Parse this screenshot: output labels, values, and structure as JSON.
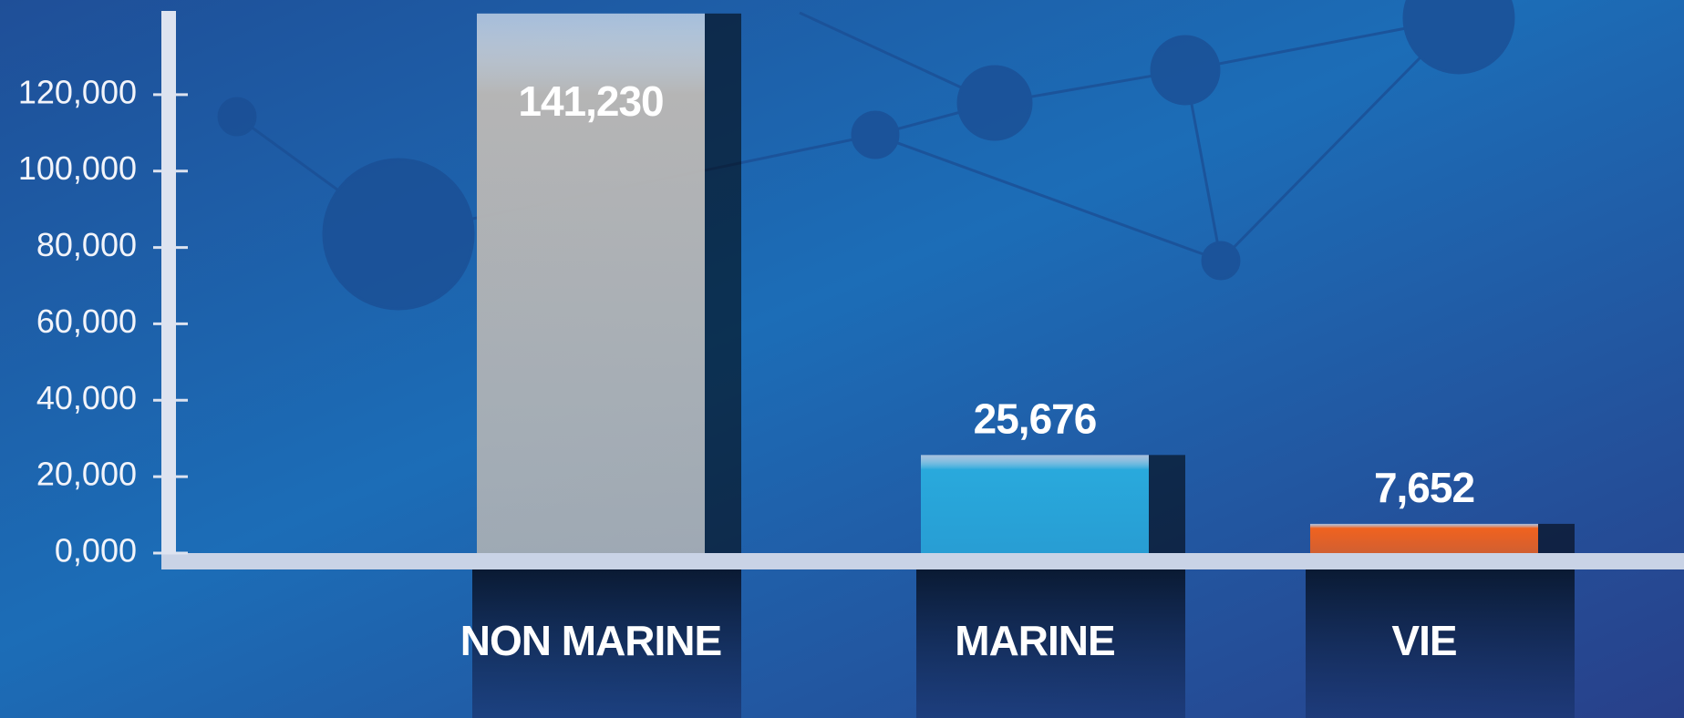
{
  "chart_data": {
    "type": "bar",
    "categories": [
      "NON MARINE",
      "MARINE",
      "VIE"
    ],
    "values": [
      141230,
      25676,
      7652
    ],
    "value_labels": [
      "141,230",
      "25,676",
      "7,652"
    ],
    "colors": [
      "#b5b5b5",
      "#29a9dc",
      "#f0621f"
    ],
    "ylim": [
      0,
      140000
    ],
    "yticks": [
      {
        "value": 0,
        "label": "0,000"
      },
      {
        "value": 20000,
        "label": "20,000"
      },
      {
        "value": 40000,
        "label": "40,000"
      },
      {
        "value": 60000,
        "label": "60,000"
      },
      {
        "value": 80000,
        "label": "80,000"
      },
      {
        "value": 100000,
        "label": "100,000"
      },
      {
        "value": 120000,
        "label": "120,000"
      }
    ]
  }
}
